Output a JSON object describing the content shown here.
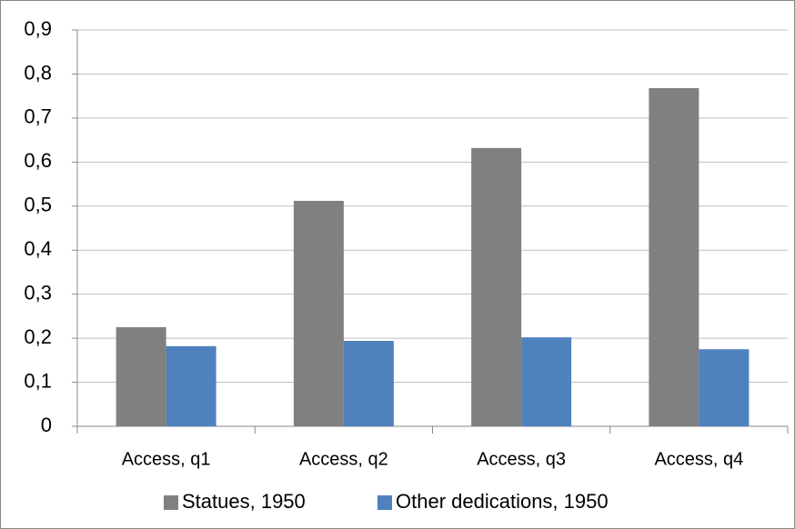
{
  "chart_data": {
    "type": "bar",
    "categories": [
      "Access, q1",
      "Access, q2",
      "Access, q3",
      "Access, q4"
    ],
    "series": [
      {
        "name": "Statues, 1950",
        "color": "#808080",
        "values": [
          0.225,
          0.512,
          0.632,
          0.768
        ]
      },
      {
        "name": "Other dedications, 1950",
        "color": "#4f81bd",
        "values": [
          0.182,
          0.194,
          0.202,
          0.175
        ]
      }
    ],
    "ylim": [
      0,
      0.9
    ],
    "yticks": [
      0,
      {
        "value": 0.1,
        "label": "0,1"
      },
      {
        "value": 0.2,
        "label": "0,2"
      },
      {
        "value": 0.3,
        "label": "0,3"
      },
      {
        "value": 0.4,
        "label": "0,4"
      },
      {
        "value": 0.5,
        "label": "0,5"
      },
      {
        "value": 0.6,
        "label": "0,6"
      },
      {
        "value": 0.7,
        "label": "0,7"
      },
      {
        "value": 0.8,
        "label": "0,8"
      },
      {
        "value": 0.9,
        "label": "0,9"
      }
    ],
    "grid": true,
    "legend": "bottom"
  }
}
